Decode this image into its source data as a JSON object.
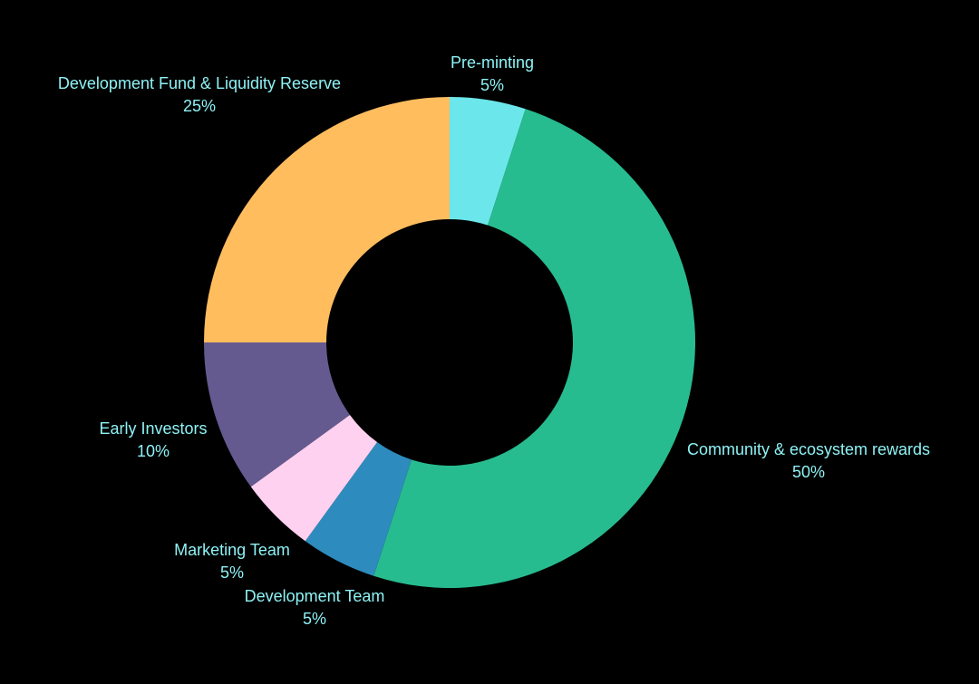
{
  "chart_data": {
    "type": "pie",
    "donut": true,
    "title": "",
    "start_angle_deg": 0,
    "direction": "clockwise",
    "label_color": "#8ef2f5",
    "background_color": "#000000",
    "slices": [
      {
        "label": "Pre-minting",
        "value_label": "5%",
        "value": 5,
        "color": "#6be6ea"
      },
      {
        "label": "Community & ecosystem rewards",
        "value_label": "50%",
        "value": 50,
        "color": "#27bc8f"
      },
      {
        "label": "Development Team",
        "value_label": "5%",
        "value": 5,
        "color": "#2e8bbd"
      },
      {
        "label": "Marketing Team",
        "value_label": "5%",
        "value": 5,
        "color": "#ffd1f0"
      },
      {
        "label": "Early Investors",
        "value_label": "10%",
        "value": 10,
        "color": "#655a90"
      },
      {
        "label": "Development Fund & Liquidity Reserve",
        "value_label": "25%",
        "value": 25,
        "color": "#ffbd5e"
      }
    ]
  }
}
